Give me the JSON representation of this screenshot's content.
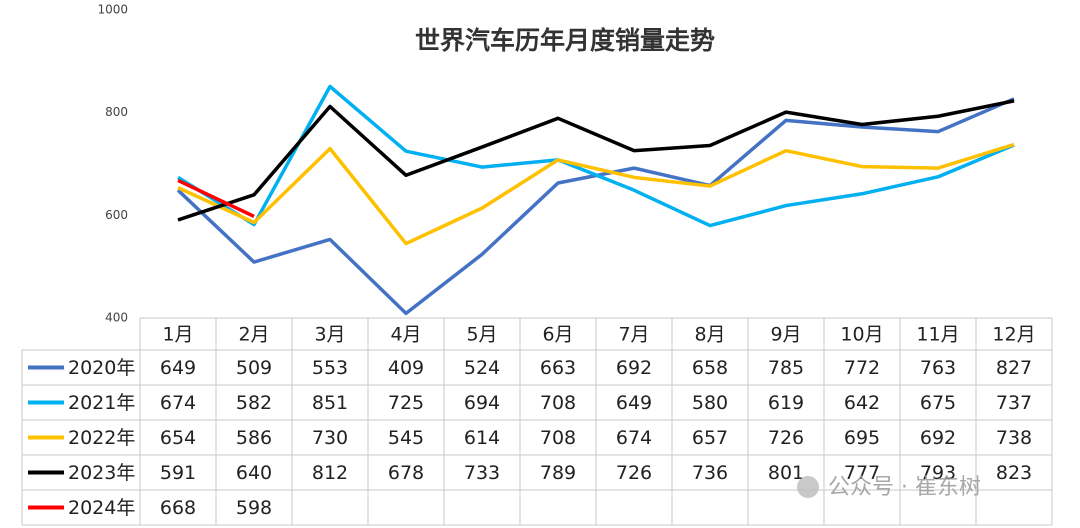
{
  "chart_data": {
    "type": "line",
    "title": "世界汽车历年月度销量走势",
    "categories": [
      "1月",
      "2月",
      "3月",
      "4月",
      "5月",
      "6月",
      "7月",
      "8月",
      "9月",
      "10月",
      "11月",
      "12月"
    ],
    "series": [
      {
        "name": "2020年",
        "color": "#4472c4",
        "values": [
          649,
          509,
          553,
          409,
          524,
          663,
          692,
          658,
          785,
          772,
          763,
          827
        ]
      },
      {
        "name": "2021年",
        "color": "#00b0f0",
        "values": [
          674,
          582,
          851,
          725,
          694,
          708,
          649,
          580,
          619,
          642,
          675,
          737
        ]
      },
      {
        "name": "2022年",
        "color": "#ffc000",
        "values": [
          654,
          586,
          730,
          545,
          614,
          708,
          674,
          657,
          726,
          695,
          692,
          738
        ]
      },
      {
        "name": "2023年",
        "color": "#000000",
        "values": [
          591,
          640,
          812,
          678,
          733,
          789,
          726,
          736,
          801,
          777,
          793,
          823
        ]
      },
      {
        "name": "2024年",
        "color": "#ff0000",
        "values": [
          668,
          598,
          null,
          null,
          null,
          null,
          null,
          null,
          null,
          null,
          null,
          null
        ]
      }
    ],
    "ylim": [
      400,
      1000
    ],
    "yticks": [
      400,
      600,
      800,
      1000
    ],
    "grid": false,
    "watermark": "公众号 · 崔东树"
  }
}
